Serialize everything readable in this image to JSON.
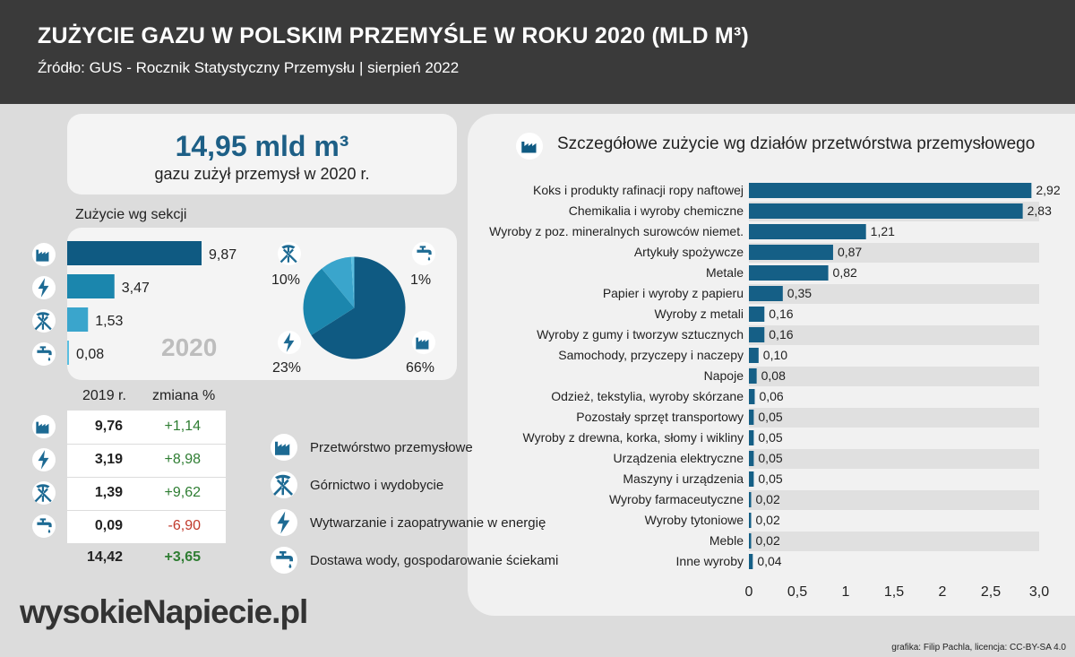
{
  "header": {
    "title": "ZUŻYCIE GAZU W POLSKIM PRZEMYŚLE W ROKU 2020 (MLD M³)",
    "source": "Źródło:  GUS - Rocznik Statystyczny Przemysłu | sierpień 2022"
  },
  "total": {
    "value": "14,95  mld m³",
    "subtitle": "gazu zużył przemysł w 2020 r."
  },
  "sections_title": "Zużycie wg sekcji",
  "year_label": "2020",
  "table_head": {
    "col1": "2019 r.",
    "col2": "zmiana %"
  },
  "legend": [
    {
      "icon": "factory-icon",
      "label": "Przetwórstwo przemysłowe"
    },
    {
      "icon": "mining-icon",
      "label": "Górnictwo i wydobycie"
    },
    {
      "icon": "lightning-icon",
      "label": "Wytwarzanie i zaopatrywanie w energię"
    },
    {
      "icon": "water-tap-icon",
      "label": "Dostawa wody, gospodarowanie ściekami"
    }
  ],
  "chart_title": "Szczegółowe zużycie wg działów przetwórstwa przemysłowego",
  "logo": "wysokieNapiecie.pl",
  "credit": "grafika: Filip Pachla, licencja: CC-BY-SA 4.0",
  "colors": {
    "dark_blue": "#0f5a82",
    "mid_blue": "#1b86ad",
    "light_blue": "#3aa5cc",
    "pale_blue": "#5bbfe0",
    "positive": "#2e7d32",
    "negative": "#c0392b"
  },
  "chart_data": [
    {
      "type": "bar",
      "orientation": "horizontal",
      "categories": [
        "Przetwórstwo przemysłowe",
        "Wytwarzanie i zaopatrywanie w energię",
        "Górnictwo i wydobycie",
        "Dostawa wody, gospodarowanie ściekami"
      ],
      "icons": [
        "factory-icon",
        "lightning-icon",
        "mining-icon",
        "water-tap-icon"
      ],
      "values": [
        9.87,
        3.47,
        1.53,
        0.08
      ],
      "value_labels": [
        "9,87",
        "3,47",
        "1,53",
        "0,08"
      ]
    },
    {
      "type": "pie",
      "categories": [
        "Przetwórstwo przemysłowe",
        "Wytwarzanie i zaopatrywanie w energię",
        "Górnictwo i wydobycie",
        "Dostawa wody, gospodarowanie ściekami"
      ],
      "icons": [
        "factory-icon",
        "lightning-icon",
        "mining-icon",
        "water-tap-icon"
      ],
      "values": [
        66,
        23,
        10,
        1
      ],
      "value_labels": [
        "66%",
        "23%",
        "10%",
        "1%"
      ]
    },
    {
      "type": "table",
      "columns": [
        "2019 r.",
        "zmiana %"
      ],
      "rows": [
        {
          "icon": "factory-icon",
          "v2019": "9,76",
          "change": "+1,14"
        },
        {
          "icon": "lightning-icon",
          "v2019": "3,19",
          "change": "+8,98"
        },
        {
          "icon": "mining-icon",
          "v2019": "1,39",
          "change": "+9,62"
        },
        {
          "icon": "water-tap-icon",
          "v2019": "0,09",
          "change": "-6,90"
        }
      ],
      "total": {
        "v2019": "14,42",
        "change": "+3,65"
      }
    },
    {
      "type": "bar",
      "orientation": "horizontal",
      "title": "Szczegółowe zużycie wg działów przetwórstwa przemysłowego",
      "categories": [
        "Koks i produkty rafinacji ropy naftowej",
        "Chemikalia i wyroby chemiczne",
        "Wyroby z poz. mineralnych surowców niemet.",
        "Artykuły spożywcze",
        "Metale",
        "Papier i wyroby z papieru",
        "Wyroby z metali",
        "Wyroby z gumy i tworzyw sztucznych",
        "Samochody, przyczepy i naczepy",
        "Napoje",
        "Odzież, tekstylia, wyroby skórzane",
        "Pozostały sprzęt transportowy",
        "Wyroby z drewna, korka, słomy i wikliny",
        "Urządzenia elektryczne",
        "Maszyny i urządzenia",
        "Wyroby farmaceutyczne",
        "Wyroby tytoniowe",
        "Meble",
        "Inne wyroby"
      ],
      "values": [
        2.92,
        2.83,
        1.21,
        0.87,
        0.82,
        0.35,
        0.16,
        0.16,
        0.1,
        0.08,
        0.06,
        0.05,
        0.05,
        0.05,
        0.05,
        0.02,
        0.02,
        0.02,
        0.04
      ],
      "value_labels": [
        "2,92",
        "2,83",
        "1,21",
        "0,87",
        "0,82",
        "0,35",
        "0,16",
        "0,16",
        "0,10",
        "0,08",
        "0,06",
        "0,05",
        "0,05",
        "0,05",
        "0,05",
        "0,02",
        "0,02",
        "0,02",
        "0,04"
      ],
      "xlim": [
        0,
        3.0
      ],
      "xticks": [
        "0",
        "0,5",
        "1",
        "1,5",
        "2",
        "2,5",
        "3,0"
      ],
      "grid": "alternating row bands"
    }
  ]
}
